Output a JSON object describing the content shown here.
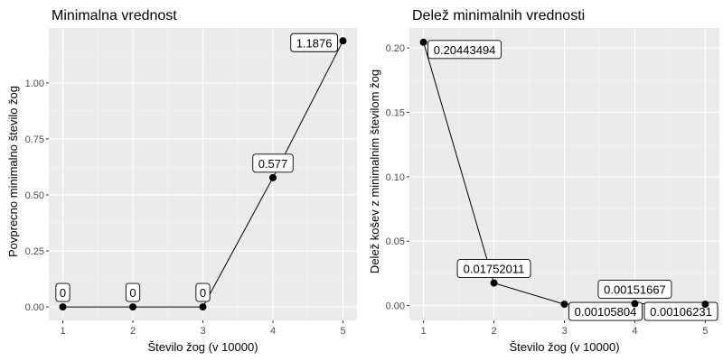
{
  "chart_data": [
    {
      "type": "line",
      "title": "Minimalna vrednost",
      "xlabel": "Število žog (v 10000)",
      "ylabel": "Povprecno minimalno število žog",
      "xlim": [
        0.8,
        5.2
      ],
      "ylim": [
        -0.06,
        1.245
      ],
      "x_ticks": [
        "1",
        "2",
        "3",
        "4",
        "5"
      ],
      "y_ticks": [
        "0.00",
        "0.25",
        "0.50",
        "0.75",
        "1.00"
      ],
      "grid": true,
      "x": [
        1,
        2,
        3,
        4,
        5
      ],
      "y": [
        0,
        0,
        0,
        0.577,
        1.1876
      ],
      "point_labels": [
        "0",
        "0",
        "0",
        "0.577",
        "1.1876"
      ]
    },
    {
      "type": "line",
      "title": "Delež minimalnih vrednosti",
      "xlabel": "Število žog (v 10000)",
      "ylabel": "Delež košev z minimalnim številom žog",
      "xlim": [
        0.8,
        5.2
      ],
      "ylim": [
        -0.0115,
        0.2155
      ],
      "x_ticks": [
        "1",
        "2",
        "3",
        "4",
        "5"
      ],
      "y_ticks": [
        "0.00",
        "0.05",
        "0.10",
        "0.15",
        "0.20"
      ],
      "grid": true,
      "x": [
        1,
        2,
        3,
        4,
        5
      ],
      "y": [
        0.20443494,
        0.01752011,
        0.00105804,
        0.00151667,
        0.00106231
      ],
      "point_labels": [
        "0.20443494",
        "0.01752011",
        "0.00105804",
        "0.00151667",
        "0.00106231"
      ]
    }
  ]
}
